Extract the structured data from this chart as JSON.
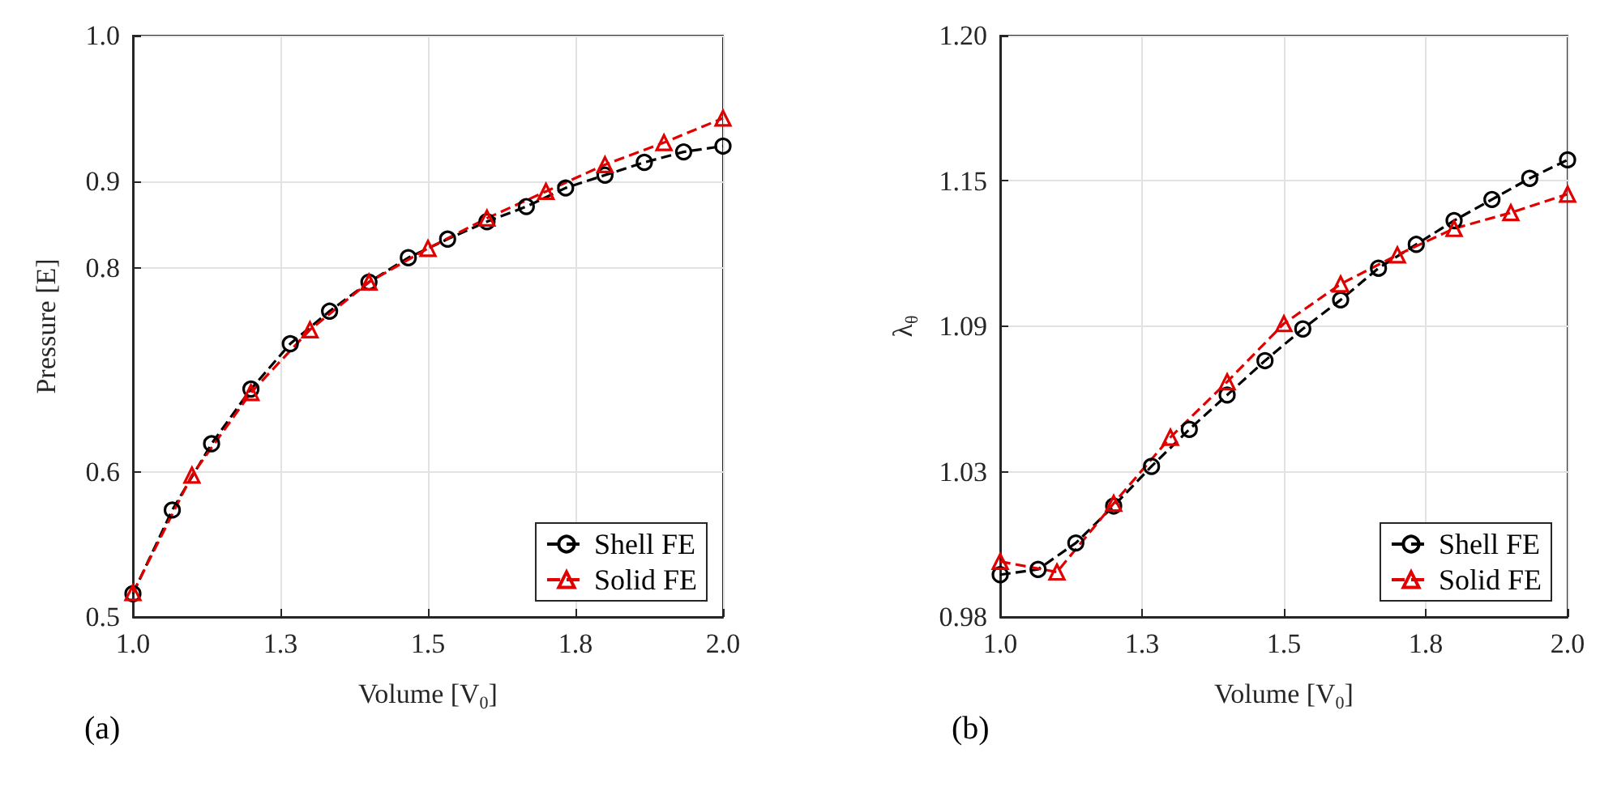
{
  "chart_data": [
    {
      "type": "line",
      "xlabel": "Volume [V$_{0}$]",
      "ylabel": "Pressure [E]",
      "annotations": [
        "(a)"
      ],
      "xlim": [
        1,
        2
      ],
      "ylim": [
        0.5,
        1
      ],
      "xticks": [
        {
          "value": 1,
          "label": "1.0"
        },
        {
          "value": 1.25,
          "label": "1.3"
        },
        {
          "value": 1.5,
          "label": "1.5"
        },
        {
          "value": 1.75,
          "label": "1.8"
        },
        {
          "value": 2,
          "label": "2.0"
        }
      ],
      "yticks": [
        0.5,
        {
          "value": 0.625,
          "label": "0.6"
        },
        0.8,
        {
          "value": 0.875,
          "label": "0.9"
        },
        {
          "value": 1,
          "label": "1.0"
        }
      ],
      "grid": true,
      "legend": "bottom right",
      "line_style": "dashed",
      "series": [
        {
          "name": "Shell FE",
          "color": "#000000",
          "marker": "circle",
          "x": [
            1,
            1.0667,
            1.1333,
            1.2,
            1.2667,
            1.3333,
            1.4,
            1.4667,
            1.5333,
            1.6,
            1.6667,
            1.7333,
            1.8,
            1.8667,
            1.9333,
            2
          ],
          "values": [
            0.52,
            0.592,
            0.649,
            0.696,
            0.735,
            0.763,
            0.788,
            0.809,
            0.825,
            0.84,
            0.853,
            0.869,
            0.88,
            0.891,
            0.9,
            0.905
          ]
        },
        {
          "name": "Solid FE",
          "color": "#e00000",
          "marker": "triangle",
          "x": [
            1,
            1.1,
            1.2,
            1.3,
            1.4,
            1.5,
            1.6,
            1.7,
            1.8,
            1.9,
            2
          ],
          "values": [
            0.521,
            0.622,
            0.693,
            0.747,
            0.788,
            0.817,
            0.843,
            0.866,
            0.889,
            0.908,
            0.929
          ]
        }
      ]
    },
    {
      "type": "line",
      "xlabel": "Volume [V$_{0}$]",
      "ylabel": "λ$_{θ}$",
      "annotations": [
        "(b)"
      ],
      "xlim": [
        1,
        2
      ],
      "ylim": [
        0.98,
        1.2
      ],
      "xticks": [
        {
          "value": 1,
          "label": "1.0"
        },
        {
          "value": 1.25,
          "label": "1.3"
        },
        {
          "value": 1.5,
          "label": "1.5"
        },
        {
          "value": 1.75,
          "label": "1.8"
        },
        {
          "value": 2,
          "label": "2.0"
        }
      ],
      "yticks": [
        0.98,
        {
          "value": 1.035,
          "label": "1.03"
        },
        1.09,
        {
          "value": 1.145,
          "label": "1.15"
        },
        {
          "value": 1.2,
          "label": "1.20"
        }
      ],
      "grid": true,
      "legend": "bottom right",
      "line_style": "dashed",
      "series": [
        {
          "name": "Shell FE",
          "color": "#000000",
          "marker": "circle",
          "x": [
            1,
            1.0667,
            1.1333,
            1.2,
            1.2667,
            1.3333,
            1.4,
            1.4667,
            1.5333,
            1.6,
            1.6667,
            1.7333,
            1.8,
            1.8667,
            1.9333,
            2
          ],
          "values": [
            0.996,
            0.998,
            1.008,
            1.022,
            1.037,
            1.051,
            1.064,
            1.077,
            1.089,
            1.1,
            1.112,
            1.121,
            1.13,
            1.138,
            1.146,
            1.153
          ]
        },
        {
          "name": "Solid FE",
          "color": "#e00000",
          "marker": "triangle",
          "x": [
            1,
            1.1,
            1.2,
            1.3,
            1.4,
            1.5,
            1.6,
            1.7,
            1.8,
            1.9,
            2
          ],
          "values": [
            1.001,
            0.997,
            1.023,
            1.048,
            1.069,
            1.091,
            1.106,
            1.117,
            1.127,
            1.133,
            1.14
          ]
        }
      ]
    }
  ]
}
